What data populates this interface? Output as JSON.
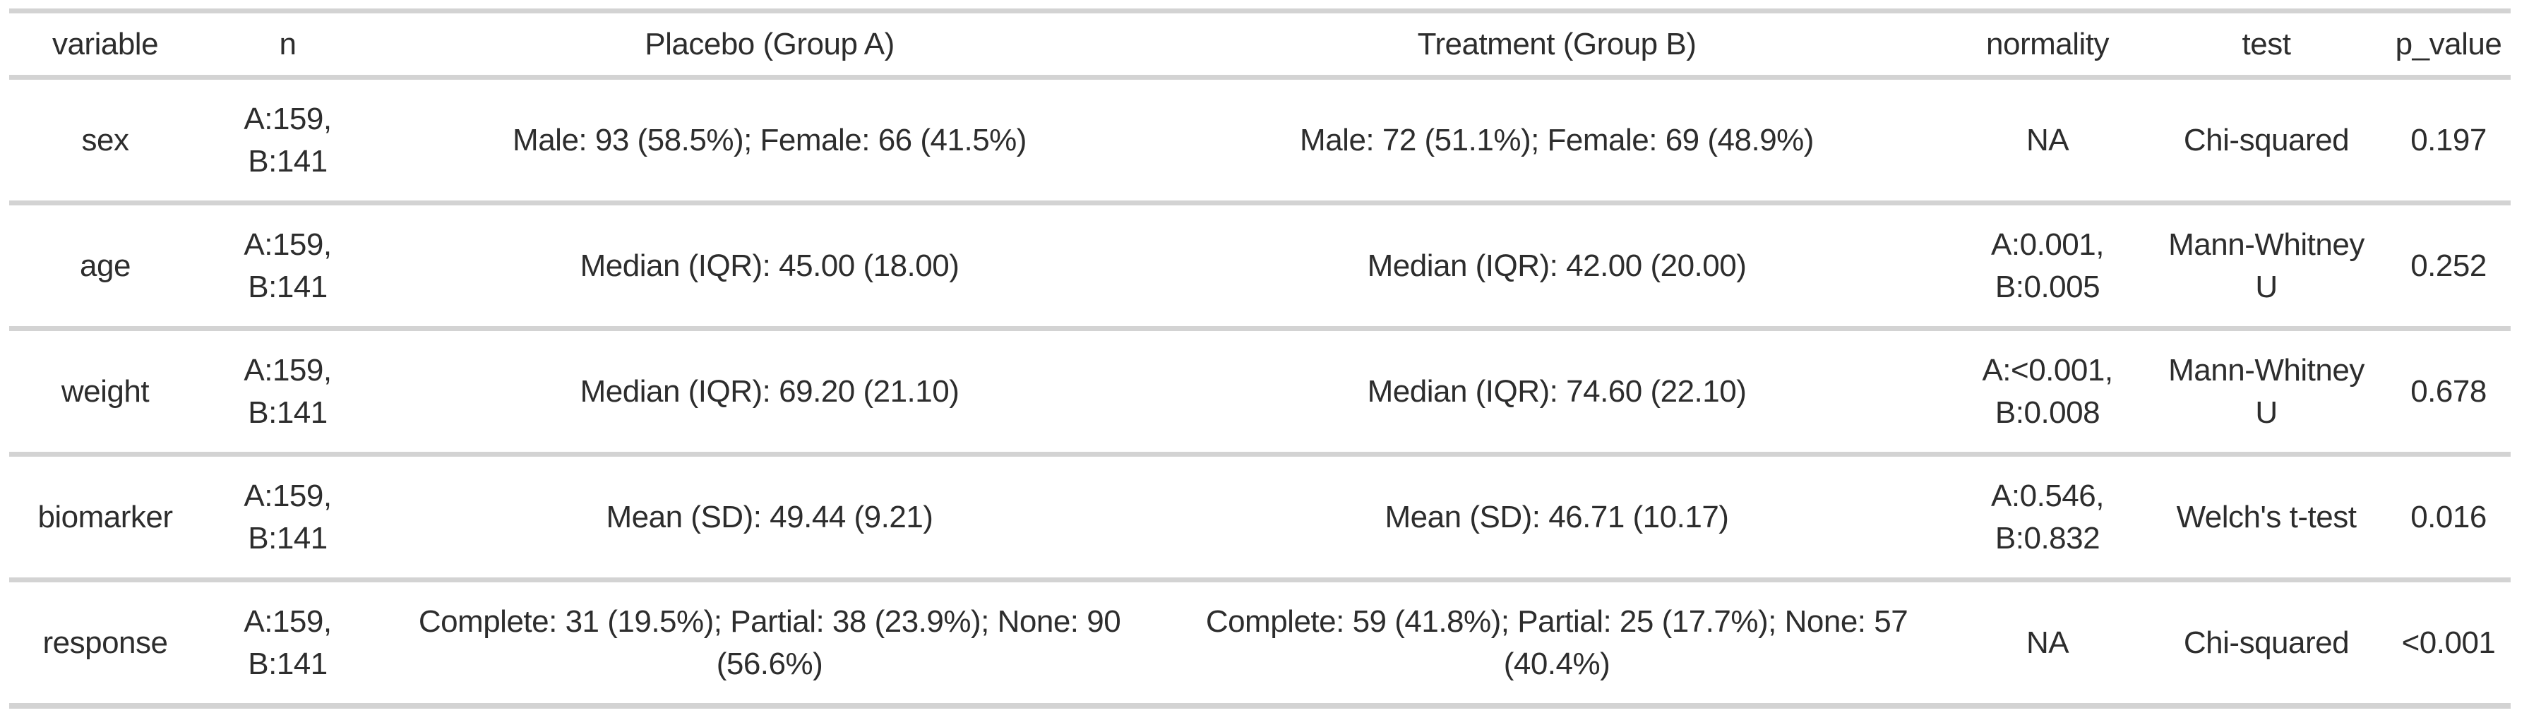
{
  "colors": {
    "background": "#ffffff",
    "text": "#2d2d2d",
    "divider": "#d3d3d3"
  },
  "chart_data": {
    "type": "table",
    "columns": [
      {
        "key": "variable",
        "label": "variable"
      },
      {
        "key": "n",
        "label": "n"
      },
      {
        "key": "placebo",
        "label": "Placebo (Group A)"
      },
      {
        "key": "treatment",
        "label": "Treatment (Group B)"
      },
      {
        "key": "normality",
        "label": "normality"
      },
      {
        "key": "test",
        "label": "test"
      },
      {
        "key": "p_value",
        "label": "p_value"
      }
    ],
    "rows": [
      {
        "variable": "sex",
        "n": "A:159,\nB:141",
        "placebo": "Male: 93 (58.5%); Female: 66 (41.5%)",
        "treatment": "Male: 72 (51.1%); Female: 69 (48.9%)",
        "normality": "NA",
        "test": "Chi-squared",
        "p_value": "0.197"
      },
      {
        "variable": "age",
        "n": "A:159,\nB:141",
        "placebo": "Median (IQR): 45.00 (18.00)",
        "treatment": "Median (IQR): 42.00 (20.00)",
        "normality": "A:0.001,\nB:0.005",
        "test": "Mann-Whitney\nU",
        "p_value": "0.252"
      },
      {
        "variable": "weight",
        "n": "A:159,\nB:141",
        "placebo": "Median (IQR): 69.20 (21.10)",
        "treatment": "Median (IQR): 74.60 (22.10)",
        "normality": "A:<0.001,\nB:0.008",
        "test": "Mann-Whitney\nU",
        "p_value": "0.678"
      },
      {
        "variable": "biomarker",
        "n": "A:159,\nB:141",
        "placebo": "Mean (SD): 49.44 (9.21)",
        "treatment": "Mean (SD): 46.71 (10.17)",
        "normality": "A:0.546,\nB:0.832",
        "test": "Welch's t-test",
        "p_value": "0.016"
      },
      {
        "variable": "response",
        "n": "A:159,\nB:141",
        "placebo": "Complete: 31 (19.5%); Partial: 38 (23.9%); None: 90\n(56.6%)",
        "treatment": "Complete: 59 (41.8%); Partial: 25 (17.7%); None: 57\n(40.4%)",
        "normality": "NA",
        "test": "Chi-squared",
        "p_value": "<0.001"
      }
    ]
  }
}
